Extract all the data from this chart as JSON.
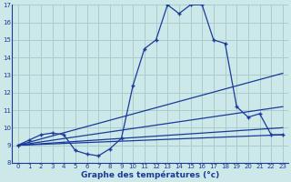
{
  "title": "Graphe des températures (°c)",
  "bg_color": "#cce8e8",
  "line_color": "#1a3a9a",
  "grid_color": "#aacccc",
  "xlim": [
    -0.5,
    23.5
  ],
  "ylim": [
    8,
    17
  ],
  "yticks": [
    8,
    9,
    10,
    11,
    12,
    13,
    14,
    15,
    16,
    17
  ],
  "xticks": [
    0,
    1,
    2,
    3,
    4,
    5,
    6,
    7,
    8,
    9,
    10,
    11,
    12,
    13,
    14,
    15,
    16,
    17,
    18,
    19,
    20,
    21,
    22,
    23
  ],
  "curve_x": [
    0,
    1,
    2,
    3,
    4,
    5,
    6,
    7,
    8,
    9,
    10,
    11,
    12,
    13,
    14,
    15,
    16,
    17,
    18,
    19,
    20,
    21,
    22,
    23
  ],
  "curve_y": [
    9.0,
    9.3,
    9.6,
    9.7,
    9.6,
    8.7,
    8.5,
    8.4,
    8.8,
    9.4,
    12.4,
    14.5,
    15.0,
    17.0,
    16.5,
    17.0,
    17.0,
    15.0,
    14.8,
    11.2,
    10.6,
    10.8,
    9.6,
    9.6
  ],
  "straight_lines": [
    {
      "x": [
        0,
        23
      ],
      "y": [
        9.0,
        9.6
      ]
    },
    {
      "x": [
        0,
        23
      ],
      "y": [
        9.0,
        10.0
      ]
    },
    {
      "x": [
        0,
        23
      ],
      "y": [
        9.0,
        11.2
      ]
    },
    {
      "x": [
        0,
        23
      ],
      "y": [
        9.0,
        13.1
      ]
    }
  ],
  "xlabel_fontsize": 6.5,
  "tick_fontsize": 5.0
}
